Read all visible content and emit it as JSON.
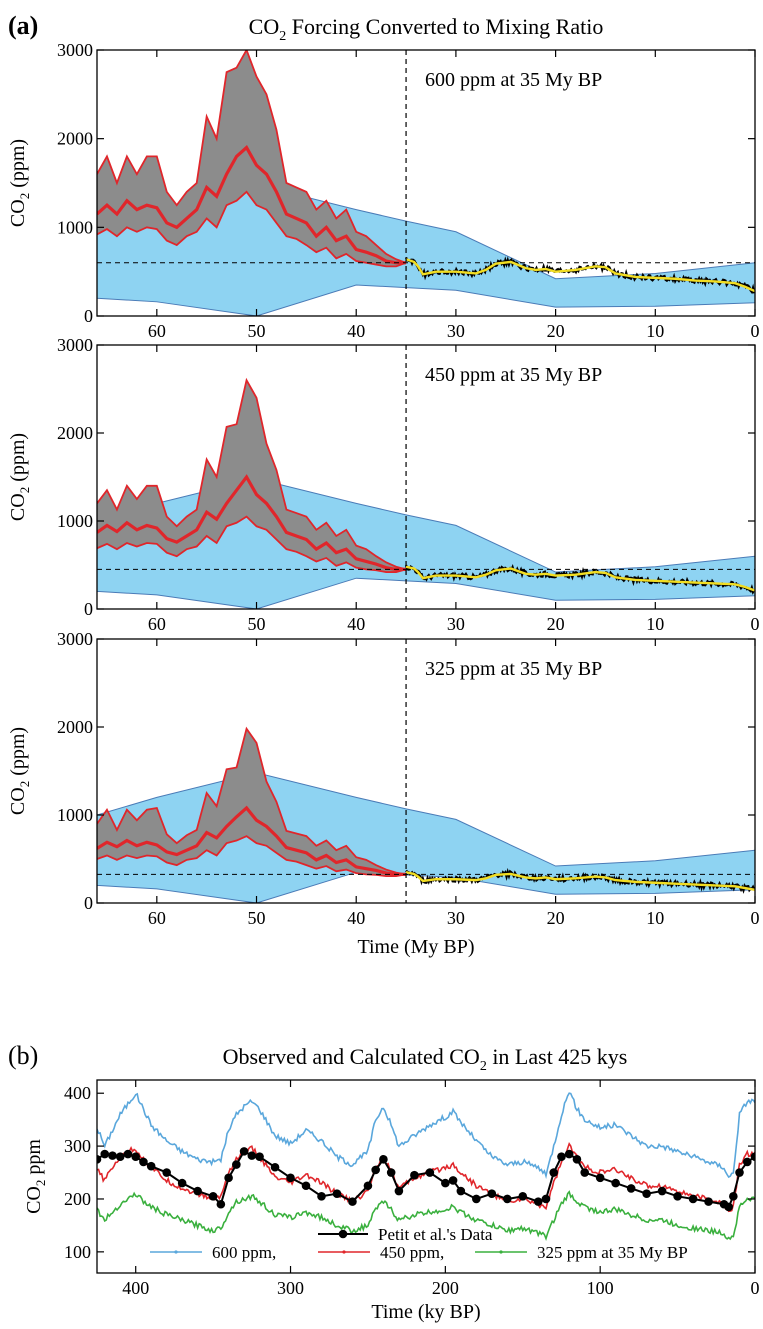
{
  "figure": {
    "panel_a_letter": "(a)",
    "panel_a_title_pre": "CO",
    "panel_a_title_sub": "2",
    "panel_a_title_post": " Forcing Converted to Mixing Ratio",
    "panel_b_letter": "(b)",
    "panel_b_title_pre": "Observed and Calculated CO",
    "panel_b_title_sub": "2",
    "panel_b_title_post": " in Last 425 kys"
  },
  "chart_data": [
    {
      "type": "line",
      "panel": "a1",
      "annotation": "600 ppm at 35 My BP",
      "xlabel": "",
      "ylabel_pre": "CO",
      "ylabel_sub": "2",
      "ylabel_post": " (ppm)",
      "xlim": [
        66,
        0
      ],
      "ylim": [
        0,
        3000
      ],
      "xticks": [
        60,
        50,
        40,
        30,
        20,
        10,
        0
      ],
      "yticks": [
        0,
        1000,
        2000,
        3000
      ],
      "hline": 600,
      "vline": 35,
      "colors": {
        "band": "#8ed3f2",
        "band_edge": "#4a7bb7",
        "range": "#8c8c8c",
        "red": "#e0262b",
        "yellow": "#f2dd22",
        "black": "#000000"
      },
      "blue_band": {
        "x": [
          66,
          60,
          50,
          40,
          35,
          30,
          20,
          10,
          0
        ],
        "upper": [
          1000,
          1200,
          1480,
          1200,
          1070,
          950,
          420,
          480,
          600
        ],
        "lower": [
          200,
          160,
          0,
          350,
          320,
          290,
          100,
          110,
          150
        ]
      },
      "red_x": [
        66,
        65,
        64,
        63,
        62,
        61,
        60,
        59,
        58,
        57,
        56,
        55,
        54,
        53,
        52,
        51,
        50,
        49,
        48,
        47,
        46,
        45,
        44,
        43,
        42,
        41,
        40,
        39,
        38,
        37,
        36,
        35
      ],
      "red_mid": [
        1150,
        1250,
        1150,
        1300,
        1200,
        1250,
        1220,
        1050,
        1000,
        1100,
        1200,
        1450,
        1350,
        1600,
        1800,
        1900,
        1700,
        1600,
        1400,
        1150,
        1100,
        1050,
        900,
        1000,
        850,
        900,
        750,
        720,
        680,
        620,
        600,
        600
      ],
      "red_upper": [
        1600,
        1800,
        1500,
        1800,
        1600,
        1800,
        1800,
        1400,
        1250,
        1400,
        1500,
        2250,
        2000,
        2750,
        2800,
        3000,
        2700,
        2500,
        2100,
        1500,
        1450,
        1400,
        1200,
        1300,
        1100,
        1200,
        950,
        900,
        800,
        700,
        640,
        600
      ],
      "red_lower": [
        920,
        980,
        900,
        1000,
        950,
        1000,
        980,
        850,
        800,
        900,
        950,
        1100,
        1000,
        1250,
        1300,
        1400,
        1250,
        1200,
        1050,
        900,
        870,
        800,
        720,
        770,
        650,
        700,
        620,
        600,
        580,
        560,
        560,
        600
      ],
      "proxy_x": [
        35,
        34.2,
        33.8,
        33.3,
        32,
        30,
        28,
        27,
        26,
        24.5,
        23,
        22,
        21,
        20,
        18,
        16,
        15,
        14,
        12,
        10,
        8,
        6,
        4,
        2,
        1,
        0
      ],
      "proxy_y": [
        640,
        610,
        560,
        470,
        500,
        500,
        480,
        520,
        590,
        610,
        540,
        520,
        530,
        500,
        520,
        560,
        550,
        480,
        440,
        430,
        420,
        400,
        390,
        370,
        330,
        280
      ]
    },
    {
      "type": "line",
      "panel": "a2",
      "annotation": "450 ppm at 35 My BP",
      "xlabel": "",
      "ylabel_pre": "CO",
      "ylabel_sub": "2",
      "ylabel_post": " (ppm)",
      "xlim": [
        66,
        0
      ],
      "ylim": [
        0,
        3000
      ],
      "xticks": [
        60,
        50,
        40,
        30,
        20,
        10,
        0
      ],
      "yticks": [
        0,
        1000,
        2000,
        3000
      ],
      "hline": 450,
      "vline": 35,
      "colors": {
        "band": "#8ed3f2",
        "band_edge": "#4a7bb7",
        "range": "#8c8c8c",
        "red": "#e0262b",
        "yellow": "#f2dd22",
        "black": "#000000"
      },
      "blue_band": {
        "x": [
          66,
          60,
          50,
          40,
          35,
          30,
          20,
          10,
          0
        ],
        "upper": [
          1000,
          1200,
          1480,
          1200,
          1070,
          950,
          420,
          480,
          600
        ],
        "lower": [
          200,
          160,
          0,
          350,
          320,
          290,
          100,
          110,
          150
        ]
      },
      "red_x": [
        66,
        65,
        64,
        63,
        62,
        61,
        60,
        59,
        58,
        57,
        56,
        55,
        54,
        53,
        52,
        51,
        50,
        49,
        48,
        47,
        46,
        45,
        44,
        43,
        42,
        41,
        40,
        39,
        38,
        37,
        36,
        35
      ],
      "red_mid": [
        870,
        950,
        880,
        980,
        900,
        950,
        920,
        800,
        760,
        830,
        900,
        1100,
        1020,
        1200,
        1350,
        1500,
        1300,
        1200,
        1050,
        870,
        830,
        790,
        680,
        750,
        640,
        680,
        570,
        540,
        510,
        470,
        450,
        450
      ],
      "red_upper": [
        1200,
        1350,
        1130,
        1400,
        1250,
        1400,
        1400,
        1050,
        940,
        1050,
        1130,
        1700,
        1500,
        2070,
        2100,
        2600,
        2400,
        1880,
        1580,
        1130,
        1090,
        1050,
        900,
        980,
        830,
        900,
        720,
        680,
        600,
        530,
        480,
        450
      ],
      "red_lower": [
        690,
        740,
        680,
        750,
        710,
        750,
        740,
        640,
        600,
        680,
        710,
        830,
        750,
        940,
        980,
        1050,
        940,
        900,
        790,
        680,
        650,
        600,
        540,
        580,
        490,
        530,
        470,
        450,
        440,
        420,
        420,
        450
      ],
      "proxy_x": [
        35,
        34.2,
        33.8,
        33.3,
        32,
        30,
        28,
        27,
        26,
        24.5,
        23,
        22,
        21,
        20,
        18,
        16,
        15,
        14,
        12,
        10,
        8,
        6,
        4,
        2,
        1,
        0
      ],
      "proxy_y": [
        480,
        460,
        420,
        350,
        380,
        380,
        360,
        390,
        440,
        460,
        400,
        390,
        400,
        380,
        390,
        420,
        410,
        360,
        330,
        320,
        310,
        300,
        290,
        280,
        250,
        210
      ]
    },
    {
      "type": "line",
      "panel": "a3",
      "annotation": "325 ppm at 35 My BP",
      "xlabel": "Time (My BP)",
      "ylabel_pre": "CO",
      "ylabel_sub": "2",
      "ylabel_post": " (ppm)",
      "xlim": [
        66,
        0
      ],
      "ylim": [
        0,
        3000
      ],
      "xticks": [
        60,
        50,
        40,
        30,
        20,
        10,
        0
      ],
      "yticks": [
        0,
        1000,
        2000,
        3000
      ],
      "hline": 325,
      "vline": 35,
      "colors": {
        "band": "#8ed3f2",
        "band_edge": "#4a7bb7",
        "range": "#8c8c8c",
        "red": "#e0262b",
        "yellow": "#f2dd22",
        "black": "#000000"
      },
      "blue_band": {
        "x": [
          66,
          60,
          50,
          40,
          35,
          30,
          20,
          10,
          0
        ],
        "upper": [
          1000,
          1200,
          1480,
          1200,
          1070,
          950,
          420,
          480,
          600
        ],
        "lower": [
          200,
          160,
          0,
          350,
          320,
          290,
          100,
          110,
          150
        ]
      },
      "red_x": [
        66,
        65,
        64,
        63,
        62,
        61,
        60,
        59,
        58,
        57,
        56,
        55,
        54,
        53,
        52,
        51,
        50,
        49,
        48,
        47,
        46,
        45,
        44,
        43,
        42,
        41,
        40,
        39,
        38,
        37,
        36,
        35
      ],
      "red_mid": [
        620,
        690,
        640,
        710,
        650,
        690,
        660,
        580,
        550,
        600,
        650,
        800,
        740,
        870,
        980,
        1080,
        940,
        870,
        760,
        630,
        600,
        570,
        490,
        540,
        460,
        490,
        410,
        390,
        370,
        340,
        325,
        325
      ],
      "red_upper": [
        900,
        1060,
        830,
        1060,
        940,
        1060,
        1080,
        780,
        680,
        770,
        830,
        1250,
        1100,
        1520,
        1540,
        1980,
        1820,
        1380,
        1150,
        820,
        790,
        760,
        650,
        710,
        600,
        650,
        520,
        490,
        430,
        380,
        345,
        325
      ],
      "red_lower": [
        500,
        540,
        490,
        540,
        510,
        540,
        530,
        460,
        430,
        490,
        510,
        600,
        540,
        680,
        710,
        760,
        680,
        650,
        570,
        490,
        470,
        430,
        390,
        420,
        360,
        380,
        340,
        325,
        320,
        305,
        305,
        325
      ],
      "proxy_x": [
        35,
        34.2,
        33.8,
        33.3,
        32,
        30,
        28,
        27,
        26,
        24.5,
        23,
        22,
        21,
        20,
        18,
        16,
        15,
        14,
        12,
        10,
        8,
        6,
        4,
        2,
        1,
        0
      ],
      "proxy_y": [
        350,
        330,
        300,
        250,
        270,
        270,
        260,
        280,
        320,
        330,
        290,
        280,
        290,
        270,
        280,
        300,
        290,
        260,
        240,
        230,
        220,
        210,
        200,
        190,
        170,
        150
      ]
    },
    {
      "type": "line",
      "panel": "b",
      "xlabel": "Time (ky BP)",
      "ylabel_pre": "CO",
      "ylabel_sub": "2",
      "ylabel_post": " ppm",
      "xlim": [
        425,
        0
      ],
      "ylim": [
        60,
        425
      ],
      "xticks": [
        400,
        300,
        200,
        100,
        0
      ],
      "yticks": [
        100,
        200,
        300,
        400
      ],
      "legend": {
        "position": "bottom",
        "petit": "Petit et al.'s Data",
        "blue": "600 ppm,",
        "red": "450 ppm,",
        "green": "325 ppm at 35 My BP"
      },
      "x": [
        425,
        420,
        415,
        410,
        405,
        400,
        395,
        390,
        380,
        370,
        360,
        350,
        345,
        340,
        335,
        330,
        325,
        320,
        310,
        300,
        290,
        280,
        270,
        260,
        250,
        245,
        240,
        235,
        230,
        220,
        210,
        200,
        195,
        190,
        180,
        170,
        160,
        150,
        140,
        135,
        130,
        125,
        120,
        115,
        110,
        100,
        90,
        80,
        70,
        60,
        50,
        40,
        30,
        20,
        17,
        14,
        10,
        5,
        0
      ],
      "series": [
        {
          "name": "600 ppm,",
          "color": "#5aa7dc",
          "values": [
            335,
            300,
            330,
            360,
            380,
            400,
            370,
            340,
            310,
            290,
            275,
            270,
            275,
            330,
            360,
            375,
            385,
            370,
            320,
            305,
            330,
            310,
            280,
            265,
            290,
            350,
            375,
            340,
            300,
            320,
            340,
            355,
            365,
            345,
            310,
            280,
            265,
            270,
            260,
            245,
            300,
            360,
            405,
            370,
            350,
            335,
            340,
            320,
            300,
            300,
            290,
            280,
            270,
            260,
            240,
            250,
            360,
            385,
            385
          ]
        },
        {
          "name": "450 ppm,",
          "color": "#e0262b",
          "values": [
            255,
            235,
            260,
            280,
            290,
            295,
            275,
            260,
            235,
            220,
            210,
            200,
            205,
            250,
            275,
            290,
            295,
            280,
            240,
            230,
            245,
            230,
            210,
            195,
            215,
            260,
            280,
            255,
            220,
            240,
            250,
            260,
            265,
            250,
            225,
            210,
            195,
            200,
            190,
            185,
            230,
            270,
            300,
            280,
            260,
            250,
            255,
            240,
            225,
            225,
            215,
            205,
            200,
            190,
            175,
            185,
            265,
            285,
            285
          ]
        },
        {
          "name": "325 ppm at 35 My BP",
          "color": "#3ab03e",
          "values": [
            180,
            160,
            175,
            190,
            200,
            210,
            195,
            185,
            170,
            160,
            150,
            140,
            145,
            175,
            195,
            200,
            205,
            195,
            170,
            165,
            175,
            165,
            150,
            140,
            150,
            180,
            195,
            180,
            160,
            170,
            175,
            180,
            185,
            175,
            160,
            150,
            140,
            145,
            135,
            130,
            160,
            190,
            210,
            195,
            185,
            175,
            180,
            170,
            160,
            160,
            150,
            145,
            140,
            135,
            125,
            130,
            185,
            200,
            200
          ]
        },
        {
          "name": "Petit et al.'s Data",
          "color": "#000000",
          "values": [
            275,
            285,
            282,
            280,
            285,
            280,
            270,
            262,
            250,
            230,
            215,
            205,
            190,
            240,
            265,
            290,
            282,
            280,
            260,
            240,
            225,
            205,
            210,
            195,
            225,
            255,
            275,
            250,
            215,
            245,
            250,
            230,
            235,
            215,
            200,
            210,
            200,
            205,
            195,
            200,
            250,
            280,
            285,
            275,
            250,
            240,
            230,
            220,
            210,
            215,
            205,
            200,
            195,
            190,
            185,
            205,
            250,
            270,
            280
          ]
        }
      ]
    }
  ]
}
